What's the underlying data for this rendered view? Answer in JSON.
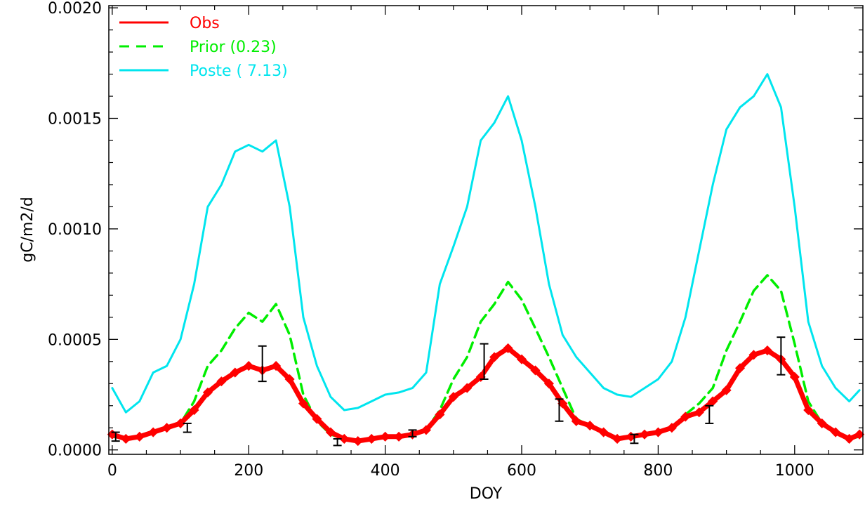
{
  "chart_data": {
    "type": "line",
    "title": "",
    "xlabel": "DOY",
    "ylabel": "gC/m2/d",
    "xlim": [
      -5,
      1100
    ],
    "ylim": [
      -2e-05,
      0.00201
    ],
    "xticks": [
      0,
      200,
      400,
      600,
      800,
      1000
    ],
    "xtick_labels": [
      "0",
      "200",
      "400",
      "600",
      "800",
      "1000"
    ],
    "yticks": [
      0.0,
      0.0005,
      0.001,
      0.0015,
      0.002
    ],
    "ytick_labels": [
      "0.0000",
      "0.0005",
      "0.0010",
      "0.0015",
      "0.0020"
    ],
    "grid": false,
    "legend_position": "top-left",
    "series": [
      {
        "name": "Obs",
        "label": "Obs",
        "color": "#ff0000",
        "style": "solid-diamond",
        "x": [
          0,
          20,
          40,
          60,
          80,
          100,
          120,
          140,
          160,
          180,
          200,
          220,
          240,
          260,
          280,
          300,
          320,
          340,
          360,
          380,
          400,
          420,
          440,
          460,
          480,
          500,
          520,
          540,
          560,
          580,
          600,
          620,
          640,
          660,
          680,
          700,
          720,
          740,
          760,
          780,
          800,
          820,
          840,
          860,
          880,
          900,
          920,
          940,
          960,
          980,
          1000,
          1020,
          1040,
          1060,
          1080,
          1095
        ],
        "y": [
          7e-05,
          5e-05,
          6e-05,
          8e-05,
          0.0001,
          0.00012,
          0.00018,
          0.00026,
          0.00031,
          0.00035,
          0.00038,
          0.00036,
          0.00038,
          0.00032,
          0.00021,
          0.00014,
          8e-05,
          5e-05,
          4e-05,
          5e-05,
          6e-05,
          6e-05,
          7e-05,
          9e-05,
          0.00016,
          0.00024,
          0.00028,
          0.00033,
          0.00042,
          0.00046,
          0.00041,
          0.00036,
          0.0003,
          0.00021,
          0.00013,
          0.00011,
          8e-05,
          5e-05,
          6e-05,
          7e-05,
          8e-05,
          0.0001,
          0.00015,
          0.00017,
          0.00022,
          0.00027,
          0.00037,
          0.00043,
          0.00045,
          0.00041,
          0.00033,
          0.00018,
          0.00012,
          8e-05,
          5e-05,
          7e-05
        ]
      },
      {
        "name": "Prior (0.23)",
        "label": "Prior (0.23)",
        "color": "#00ee00",
        "style": "dashed",
        "x": [
          0,
          20,
          40,
          60,
          80,
          100,
          120,
          140,
          160,
          180,
          200,
          220,
          240,
          260,
          280,
          300,
          320,
          340,
          360,
          380,
          400,
          420,
          440,
          460,
          480,
          500,
          520,
          540,
          560,
          580,
          600,
          620,
          640,
          660,
          680,
          700,
          720,
          740,
          760,
          780,
          800,
          820,
          840,
          860,
          880,
          900,
          920,
          940,
          960,
          980,
          1000,
          1020,
          1040,
          1060,
          1080,
          1095
        ],
        "y": [
          6e-05,
          5e-05,
          6e-05,
          8e-05,
          0.0001,
          0.00012,
          0.00022,
          0.00038,
          0.00045,
          0.00055,
          0.00062,
          0.00058,
          0.00066,
          0.00052,
          0.00025,
          0.00013,
          7e-05,
          5e-05,
          4e-05,
          5e-05,
          6e-05,
          6e-05,
          7e-05,
          9e-05,
          0.00018,
          0.00032,
          0.00042,
          0.00058,
          0.00066,
          0.00076,
          0.00068,
          0.00055,
          0.00042,
          0.00028,
          0.00014,
          0.00011,
          8e-05,
          5e-05,
          6e-05,
          7e-05,
          8e-05,
          0.0001,
          0.00016,
          0.00021,
          0.00028,
          0.00045,
          0.00058,
          0.00072,
          0.00079,
          0.00072,
          0.00048,
          0.00022,
          0.00012,
          8e-05,
          5e-05,
          6e-05
        ]
      },
      {
        "name": "Poste ( 7.13)",
        "label": "Poste ( 7.13)",
        "color": "#00e5ee",
        "style": "solid",
        "x": [
          0,
          20,
          40,
          60,
          80,
          100,
          120,
          140,
          160,
          180,
          200,
          220,
          240,
          260,
          280,
          300,
          320,
          340,
          360,
          380,
          400,
          420,
          440,
          460,
          480,
          500,
          520,
          540,
          560,
          580,
          600,
          620,
          640,
          660,
          680,
          700,
          720,
          740,
          760,
          780,
          800,
          820,
          840,
          860,
          880,
          900,
          920,
          940,
          960,
          980,
          1000,
          1020,
          1040,
          1060,
          1080,
          1095
        ],
        "y": [
          0.00028,
          0.00017,
          0.00022,
          0.00035,
          0.00038,
          0.0005,
          0.00075,
          0.0011,
          0.0012,
          0.00135,
          0.00138,
          0.00135,
          0.0014,
          0.0011,
          0.0006,
          0.00038,
          0.00024,
          0.00018,
          0.00019,
          0.00022,
          0.00025,
          0.00026,
          0.00028,
          0.00035,
          0.00075,
          0.00092,
          0.0011,
          0.0014,
          0.00148,
          0.0016,
          0.0014,
          0.0011,
          0.00075,
          0.00052,
          0.00042,
          0.00035,
          0.00028,
          0.00025,
          0.00024,
          0.00028,
          0.00032,
          0.0004,
          0.0006,
          0.0009,
          0.0012,
          0.00145,
          0.00155,
          0.0016,
          0.0017,
          0.00155,
          0.0011,
          0.00058,
          0.00038,
          0.00028,
          0.00022,
          0.00027
        ]
      }
    ],
    "error_bars": {
      "color": "#000000",
      "x": [
        5,
        110,
        220,
        330,
        440,
        545,
        655,
        765,
        875,
        980
      ],
      "low": [
        4e-05,
        8e-05,
        0.00031,
        2e-05,
        6e-05,
        0.00032,
        0.00013,
        3e-05,
        0.00012,
        0.00034
      ],
      "high": [
        8e-05,
        0.00012,
        0.00047,
        5e-05,
        9e-05,
        0.00048,
        0.00023,
        7e-05,
        0.0002,
        0.00051
      ]
    }
  }
}
